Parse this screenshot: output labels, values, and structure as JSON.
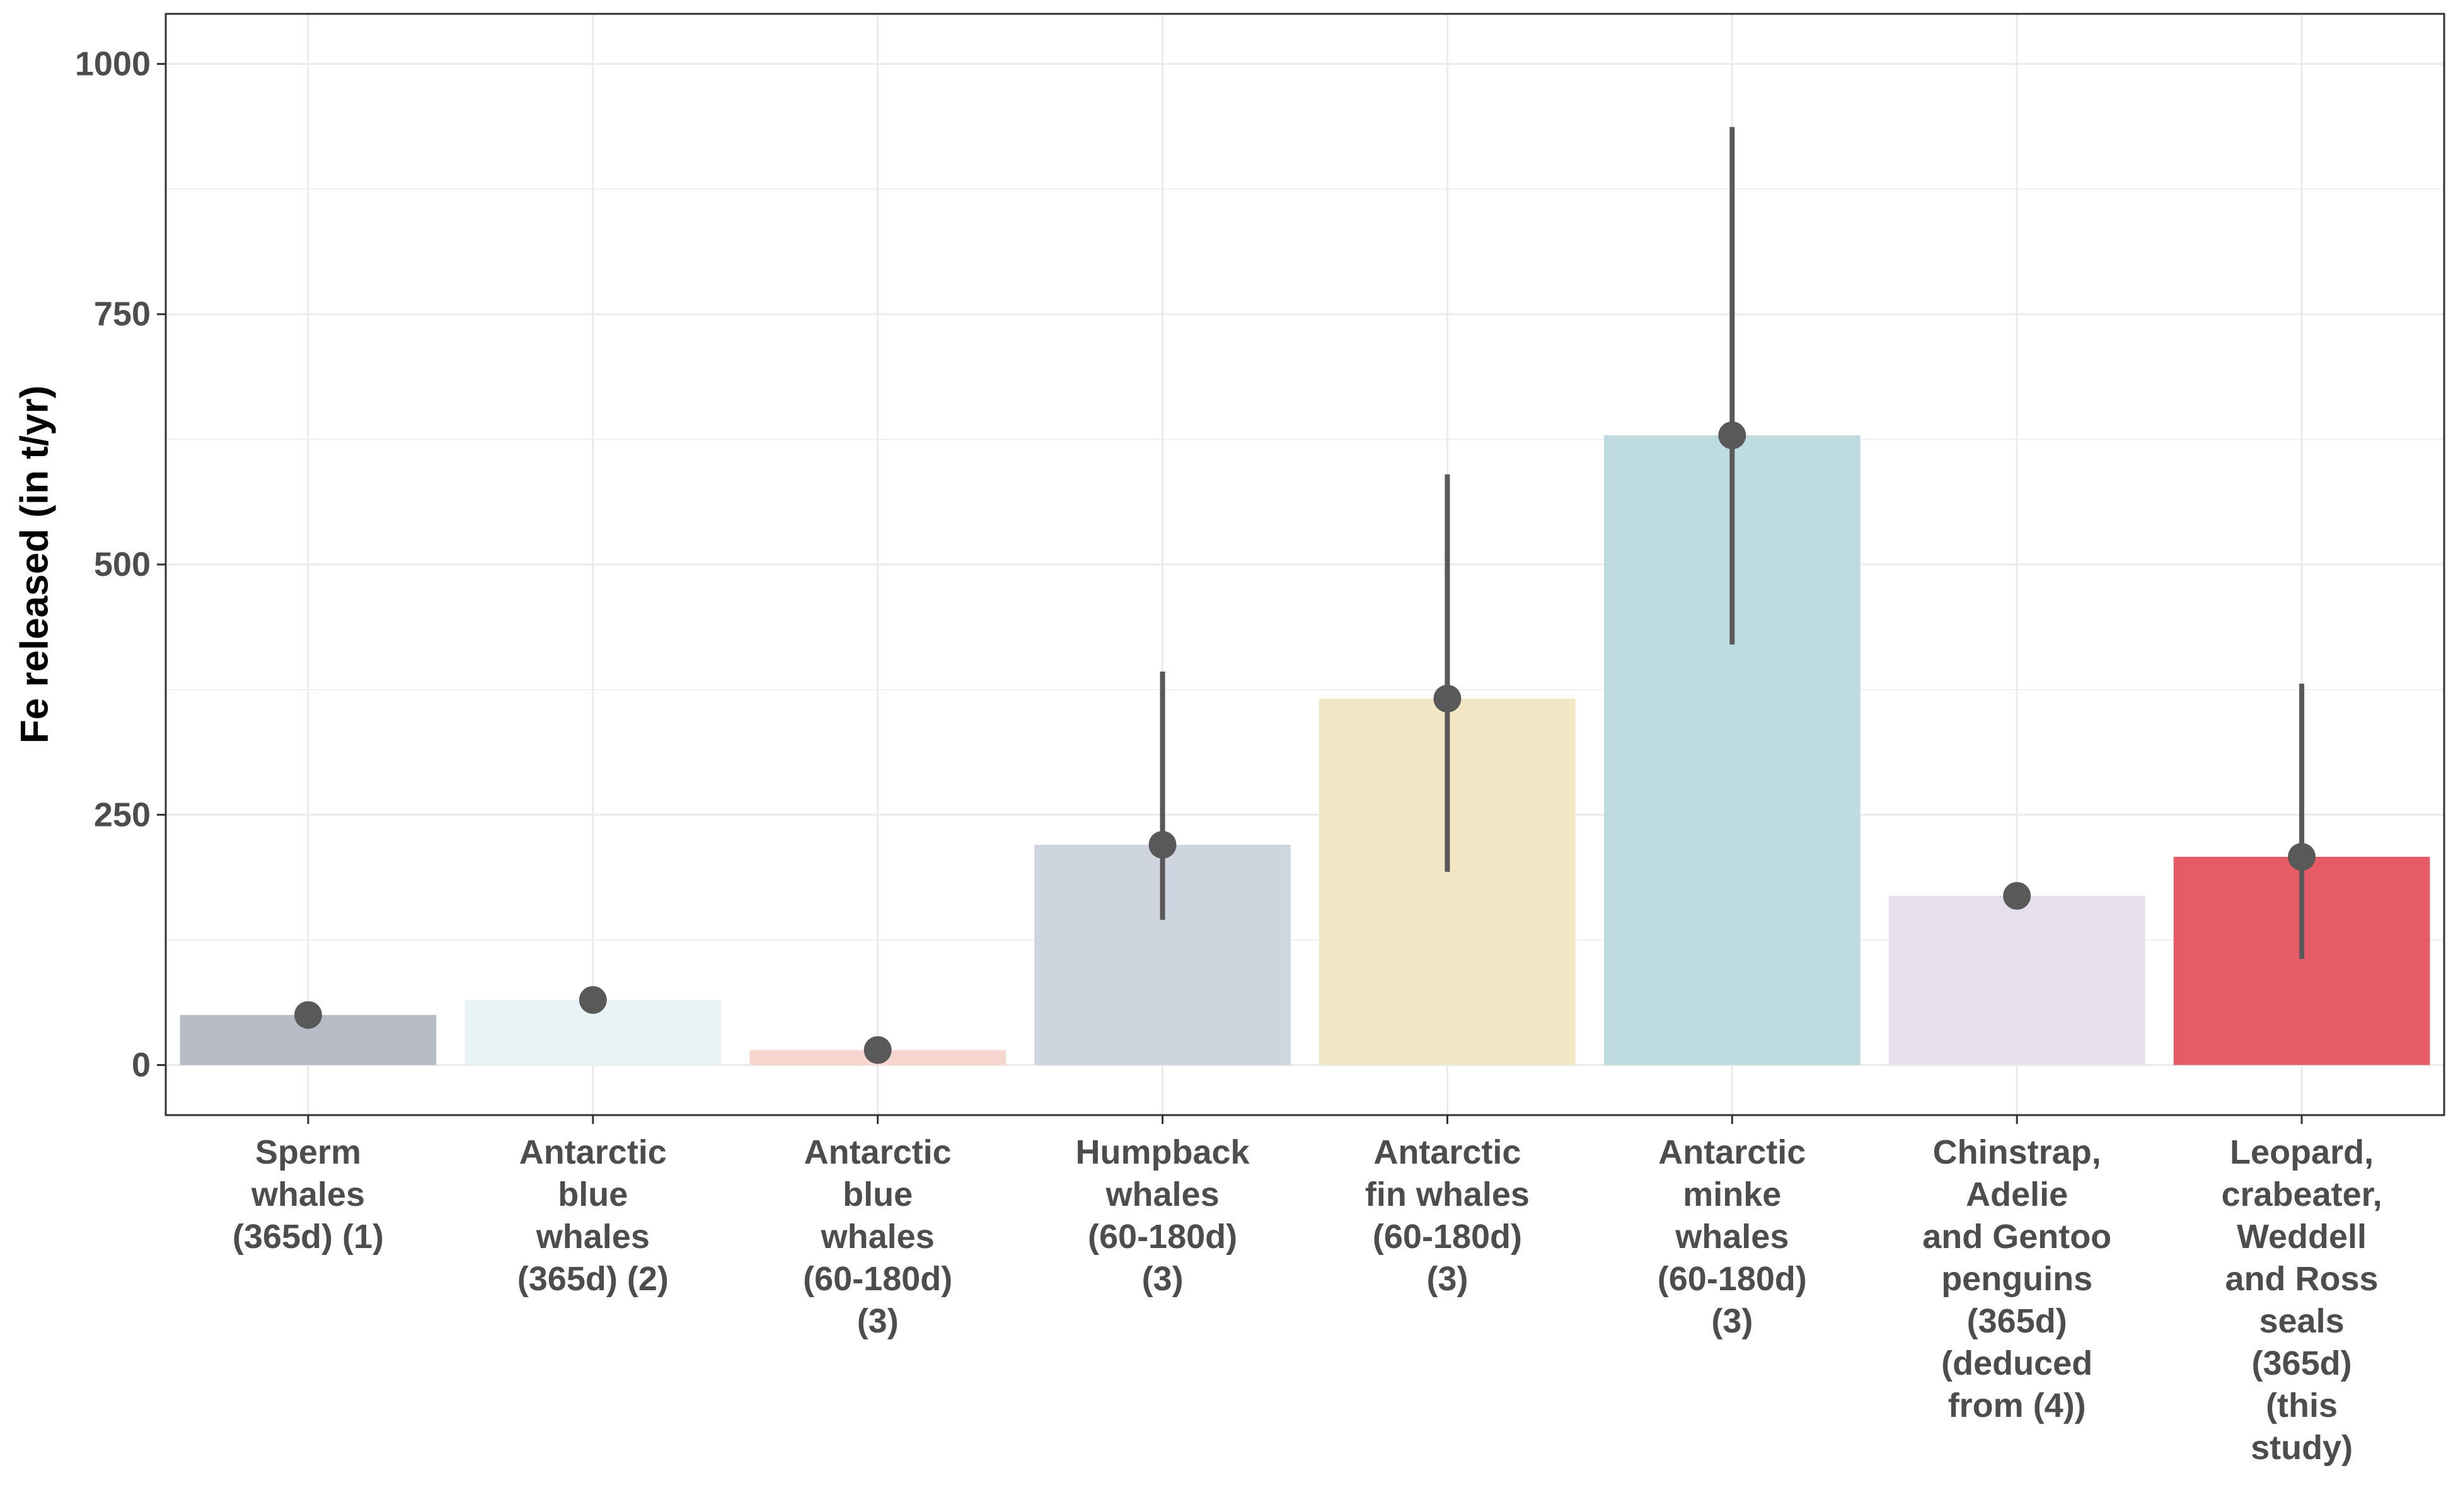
{
  "chart_data": {
    "type": "bar",
    "title": "",
    "xlabel": "",
    "ylabel": "Fe released (in t/yr)",
    "ylim": [
      -50,
      1050
    ],
    "yticks": [
      0,
      250,
      500,
      750,
      1000
    ],
    "grid": true,
    "legend": "none",
    "categories": [
      "Sperm whales (365d) (1)",
      "Antarctic blue whales (365d) (2)",
      "Antarctic blue whales (60-180d) (3)",
      "Humpback whales (60-180d) (3)",
      "Antarctic fin whales (60-180d) (3)",
      "Antarctic minke whales (60-180d) (3)",
      "Chinstrap, Adelie and Gentoo penguins (365d) (deduced from (4))",
      "Leopard, crabeater, Weddell and Ross seals (365d) (this study)"
    ],
    "category_lines": [
      [
        "Sperm",
        "whales",
        "(365d) (1)"
      ],
      [
        "Antarctic",
        "blue",
        "whales",
        "(365d) (2)"
      ],
      [
        "Antarctic",
        "blue",
        "whales",
        "(60-180d)",
        "(3)"
      ],
      [
        "Humpback",
        "whales",
        "(60-180d)",
        "(3)"
      ],
      [
        "Antarctic",
        "fin whales",
        "(60-180d)",
        "(3)"
      ],
      [
        "Antarctic",
        "minke",
        "whales",
        "(60-180d)",
        "(3)"
      ],
      [
        "Chinstrap,",
        "Adelie",
        "and Gentoo",
        "penguins",
        "(365d)",
        "(deduced",
        "from (4))"
      ],
      [
        "Leopard,",
        "crabeater,",
        "Weddell",
        "and Ross",
        "seals",
        "(365d)",
        "(this",
        "study)"
      ]
    ],
    "values": [
      50,
      65,
      15,
      220,
      366,
      629,
      169,
      208
    ],
    "error_low": [
      null,
      null,
      null,
      145,
      193,
      420,
      null,
      106
    ],
    "error_high": [
      null,
      null,
      null,
      393,
      590,
      937,
      null,
      381
    ],
    "bar_colors": [
      "#b8bcc6",
      "#e7f3f5",
      "#f7d6cf",
      "#cfd5de",
      "#f3e6c4",
      "#bedcdf",
      "#e6dfec",
      "#e75b66"
    ],
    "point_color": "#595959",
    "errorbar_color": "#595959",
    "tick_text_color": "#4d4d4d",
    "grid_color": "#ebebeb",
    "panel_border_color": "#333333"
  }
}
